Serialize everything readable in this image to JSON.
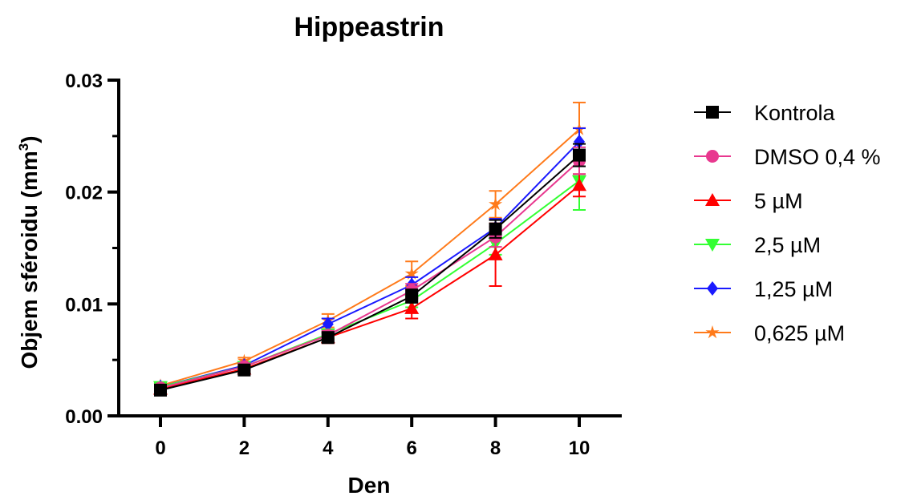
{
  "chart_data": {
    "type": "line",
    "title": "Hippeastrin",
    "xlabel": "Den",
    "ylabel_main": "Objem sféroidu (mm",
    "ylabel_sup": "3",
    "ylabel_close": ")",
    "x": [
      0,
      2,
      4,
      6,
      8,
      10
    ],
    "xticks": [
      "0",
      "2",
      "4",
      "6",
      "8",
      "10"
    ],
    "yticks": [
      "0.00",
      "0.01",
      "0.02",
      "0.03"
    ],
    "ylim": [
      0,
      0.03
    ],
    "xlim": [
      -1,
      11
    ],
    "legend_position": "right",
    "series": [
      {
        "name": "Kontrola",
        "color": "#000000",
        "marker": "square",
        "values": [
          0.0023,
          0.0041,
          0.007,
          0.0107,
          0.0167,
          0.0233
        ],
        "errors": [
          0.0003,
          0.0003,
          0.0004,
          0.0006,
          0.0008,
          0.001
        ]
      },
      {
        "name": "DMSO 0,4 %",
        "color": "#e8388f",
        "marker": "circle",
        "values": [
          0.0025,
          0.0044,
          0.0072,
          0.0112,
          0.016,
          0.0228
        ],
        "errors": [
          0.0003,
          0.0003,
          0.0004,
          0.0006,
          0.0009,
          0.0012
        ]
      },
      {
        "name": "5 µM",
        "color": "#ff0000",
        "marker": "triangle-up",
        "values": [
          0.0024,
          0.0042,
          0.007,
          0.0096,
          0.0144,
          0.0206
        ],
        "errors": [
          0.0003,
          0.0003,
          0.0005,
          0.0009,
          0.0028,
          0.001
        ]
      },
      {
        "name": "2,5 µM",
        "color": "#33ff33",
        "marker": "triangle-down",
        "values": [
          0.0026,
          0.0044,
          0.0073,
          0.0103,
          0.0154,
          0.021
        ],
        "errors": [
          0.0003,
          0.0003,
          0.0004,
          0.0006,
          0.001,
          0.0026
        ]
      },
      {
        "name": "1,25 µM",
        "color": "#1a1aff",
        "marker": "diamond",
        "values": [
          0.0026,
          0.0045,
          0.0082,
          0.0117,
          0.0168,
          0.0245
        ],
        "errors": [
          0.0003,
          0.0003,
          0.0005,
          0.0007,
          0.0008,
          0.0012
        ]
      },
      {
        "name": "0,625 µM",
        "color": "#ff7a1a",
        "marker": "star",
        "values": [
          0.0027,
          0.0049,
          0.0085,
          0.0127,
          0.0189,
          0.0256
        ],
        "errors": [
          0.0003,
          0.0003,
          0.0006,
          0.0011,
          0.0012,
          0.0024
        ]
      }
    ]
  }
}
